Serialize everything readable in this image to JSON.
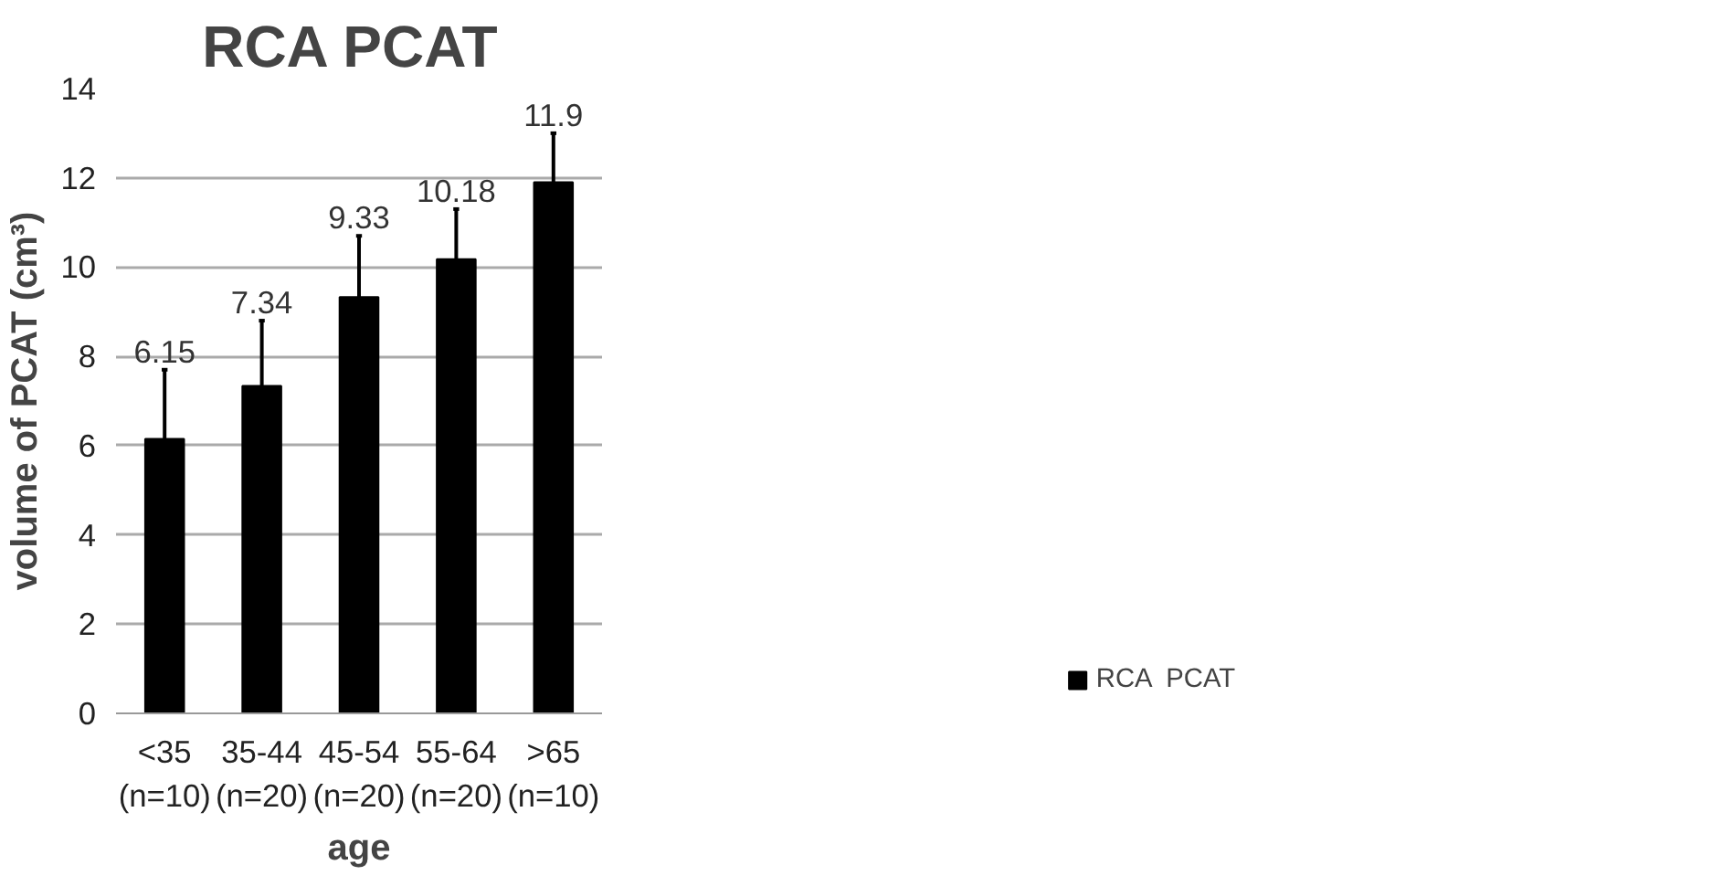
{
  "chart_data": {
    "type": "bar",
    "title": "RCA  PCAT",
    "xlabel": "age",
    "ylabel": "volume of PCAT (cm³)",
    "categories": [
      "<35\n(n=10)",
      "35-44\n(n=20)",
      "45-54\n(n=20)",
      "55-64\n(n=20)",
      ">65\n(n=10)"
    ],
    "series": [
      {
        "name": "RCA  PCAT",
        "color": "#000000",
        "values": [
          6.15,
          7.34,
          9.33,
          10.18,
          11.9
        ],
        "errors": [
          [
            6.15,
            7.7
          ],
          [
            7.34,
            8.8
          ],
          [
            9.33,
            10.7
          ],
          [
            10.18,
            11.3
          ],
          [
            11.9,
            13.0
          ]
        ]
      }
    ],
    "ylim": [
      0,
      14
    ],
    "yticks": [
      0,
      2,
      4,
      6,
      8,
      10,
      12,
      14
    ],
    "grid": "y",
    "legend": "right",
    "data_labels": true
  }
}
